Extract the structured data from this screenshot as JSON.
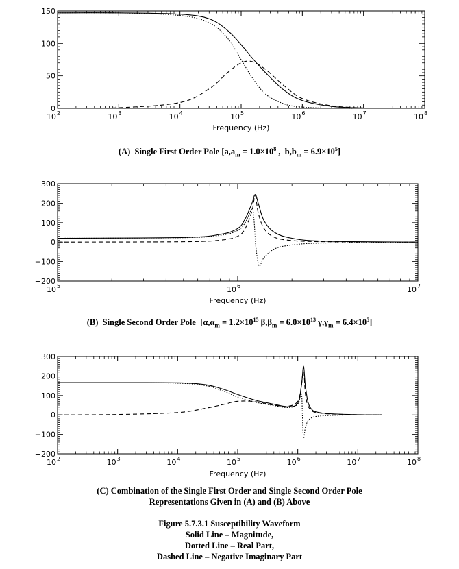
{
  "chart_data": [
    {
      "type": "line",
      "xscale": "log",
      "xlim": [
        100,
        100000000
      ],
      "ylim": [
        0,
        150
      ],
      "yticks": [
        0,
        50,
        100,
        150
      ],
      "xticks": [
        {
          "base": "10",
          "exp": "2"
        },
        {
          "base": "10",
          "exp": "3"
        },
        {
          "base": "10",
          "exp": "4"
        },
        {
          "base": "10",
          "exp": "5"
        },
        {
          "base": "10",
          "exp": "6"
        },
        {
          "base": "10",
          "exp": "7"
        },
        {
          "base": "10",
          "exp": "8"
        }
      ],
      "ylabels": [
        "0",
        "50",
        "100",
        "150"
      ],
      "xlabel": "Frequency (Hz)",
      "caption": "(A) Single First Order Pole [a,a_m = 1.0×10^8 , b,b_m = 6.9×10^5]",
      "series": [
        {
          "style": "solid",
          "points": [
            [
              100,
              147
            ],
            [
              1000,
              147
            ],
            [
              10000,
              145
            ],
            [
              30000,
              138
            ],
            [
              60000,
              120
            ],
            [
              100000,
              98
            ],
            [
              150000,
              78
            ],
            [
              250000,
              55
            ],
            [
              500000,
              28
            ],
            [
              1000000,
              12
            ],
            [
              3000000,
              3
            ],
            [
              10000000,
              0.5
            ]
          ]
        },
        {
          "style": "dotted",
          "points": [
            [
              100,
              147
            ],
            [
              1000,
              147
            ],
            [
              10000,
              143
            ],
            [
              30000,
              132
            ],
            [
              60000,
              108
            ],
            [
              100000,
              75
            ],
            [
              150000,
              48
            ],
            [
              250000,
              22
            ],
            [
              500000,
              7
            ],
            [
              1000000,
              2
            ],
            [
              3000000,
              0.2
            ],
            [
              10000000,
              0
            ]
          ]
        },
        {
          "style": "dashed",
          "points": [
            [
              100,
              0.2
            ],
            [
              1000,
              1
            ],
            [
              10000,
              9
            ],
            [
              30000,
              30
            ],
            [
              60000,
              55
            ],
            [
              100000,
              70
            ],
            [
              150000,
              72
            ],
            [
              250000,
              60
            ],
            [
              500000,
              35
            ],
            [
              1000000,
              15
            ],
            [
              3000000,
              4
            ],
            [
              10000000,
              0.5
            ]
          ]
        }
      ]
    },
    {
      "type": "line",
      "xscale": "log",
      "xlim": [
        100000,
        10000000
      ],
      "ylim": [
        -200,
        300
      ],
      "yticks": [
        -200,
        -100,
        0,
        100,
        200,
        300
      ],
      "xticks": [
        {
          "base": "10",
          "exp": "5"
        },
        {
          "base": "10",
          "exp": "6"
        },
        {
          "base": "10",
          "exp": "7"
        }
      ],
      "ylabels": [
        "−200",
        "−100",
        "0",
        "100",
        "200",
        "300"
      ],
      "xlabel": "Frequency (Hz)",
      "caption": "(B) Single Second Order Pole [α,α_m = 1.2×10^15 β,β_m = 6.0×10^13 γ,γ_m = 6.4×10^5]",
      "series": [
        {
          "style": "solid",
          "points": [
            [
              100000,
              20
            ],
            [
              500000,
              24
            ],
            [
              800000,
              40
            ],
            [
              1000000,
              70
            ],
            [
              1100000,
              120
            ],
            [
              1200000,
              200
            ],
            [
              1250000,
              245
            ],
            [
              1300000,
              200
            ],
            [
              1400000,
              110
            ],
            [
              1600000,
              50
            ],
            [
              2000000,
              20
            ],
            [
              3000000,
              5
            ],
            [
              10000000,
              0
            ]
          ]
        },
        {
          "style": "dotted",
          "points": [
            [
              100000,
              20
            ],
            [
              500000,
              23
            ],
            [
              800000,
              35
            ],
            [
              1000000,
              60
            ],
            [
              1100000,
              100
            ],
            [
              1200000,
              170
            ],
            [
              1230000,
              120
            ],
            [
              1260000,
              -20
            ],
            [
              1300000,
              -110
            ],
            [
              1330000,
              -120
            ],
            [
              1400000,
              -80
            ],
            [
              1600000,
              -35
            ],
            [
              2000000,
              -15
            ],
            [
              3000000,
              -5
            ],
            [
              10000000,
              0
            ]
          ]
        },
        {
          "style": "dashed",
          "points": [
            [
              100000,
              0
            ],
            [
              500000,
              2
            ],
            [
              800000,
              10
            ],
            [
              1000000,
              30
            ],
            [
              1100000,
              70
            ],
            [
              1200000,
              160
            ],
            [
              1250000,
              240
            ],
            [
              1300000,
              150
            ],
            [
              1400000,
              70
            ],
            [
              1600000,
              25
            ],
            [
              2000000,
              8
            ],
            [
              3000000,
              2
            ],
            [
              10000000,
              0
            ]
          ]
        }
      ]
    },
    {
      "type": "line",
      "xscale": "log",
      "xlim": [
        100,
        100000000
      ],
      "ylim": [
        -200,
        300
      ],
      "yticks": [
        -200,
        -100,
        0,
        100,
        200,
        300
      ],
      "xticks": [
        {
          "base": "10",
          "exp": "2"
        },
        {
          "base": "10",
          "exp": "3"
        },
        {
          "base": "10",
          "exp": "4"
        },
        {
          "base": "10",
          "exp": "5"
        },
        {
          "base": "10",
          "exp": "6"
        },
        {
          "base": "10",
          "exp": "7"
        },
        {
          "base": "10",
          "exp": "8"
        }
      ],
      "ylabels": [
        "−200",
        "−100",
        "0",
        "100",
        "200",
        "300"
      ],
      "xlabel": "Frequency (Hz)",
      "caption": "(C) Combination of the Single First Order and Single Second Order Pole Representations Given in (A) and (B) Above",
      "series": [
        {
          "style": "solid",
          "points": [
            [
              100,
              166
            ],
            [
              1000,
              166
            ],
            [
              10000,
              165
            ],
            [
              30000,
              155
            ],
            [
              60000,
              130
            ],
            [
              100000,
              105
            ],
            [
              200000,
              75
            ],
            [
              400000,
              55
            ],
            [
              700000,
              42
            ],
            [
              1000000,
              60
            ],
            [
              1150000,
              150
            ],
            [
              1250000,
              250
            ],
            [
              1350000,
              140
            ],
            [
              1600000,
              40
            ],
            [
              2500000,
              10
            ],
            [
              10000000,
              1
            ],
            [
              25000000,
              0
            ]
          ]
        },
        {
          "style": "dotted",
          "points": [
            [
              100,
              166
            ],
            [
              1000,
              166
            ],
            [
              10000,
              163
            ],
            [
              30000,
              150
            ],
            [
              60000,
              120
            ],
            [
              100000,
              92
            ],
            [
              200000,
              65
            ],
            [
              400000,
              48
            ],
            [
              700000,
              38
            ],
            [
              1000000,
              55
            ],
            [
              1150000,
              110
            ],
            [
              1200000,
              -20
            ],
            [
              1250000,
              -120
            ],
            [
              1350000,
              -60
            ],
            [
              1600000,
              -20
            ],
            [
              2500000,
              -5
            ],
            [
              10000000,
              0
            ],
            [
              25000000,
              0
            ]
          ]
        },
        {
          "style": "dashed",
          "points": [
            [
              100,
              0
            ],
            [
              1000,
              2
            ],
            [
              10000,
              12
            ],
            [
              30000,
              35
            ],
            [
              60000,
              55
            ],
            [
              100000,
              70
            ],
            [
              200000,
              68
            ],
            [
              400000,
              50
            ],
            [
              700000,
              45
            ],
            [
              1000000,
              70
            ],
            [
              1150000,
              150
            ],
            [
              1250000,
              240
            ],
            [
              1350000,
              100
            ],
            [
              1600000,
              30
            ],
            [
              2500000,
              8
            ],
            [
              10000000,
              1
            ],
            [
              25000000,
              0
            ]
          ]
        }
      ]
    }
  ],
  "caption_c_line1": "(C) Combination of the Single First Order and Single Second Order Pole",
  "caption_c_line2": "Representations Given in (A) and (B) Above",
  "figure_caption": {
    "title": "Figure 5.7.3.1    Susceptibility Waveform",
    "line1": "Solid Line – Magnitude,",
    "line2": "Dotted Line – Real Part,",
    "line3": "Dashed Line – Negative Imaginary Part"
  }
}
